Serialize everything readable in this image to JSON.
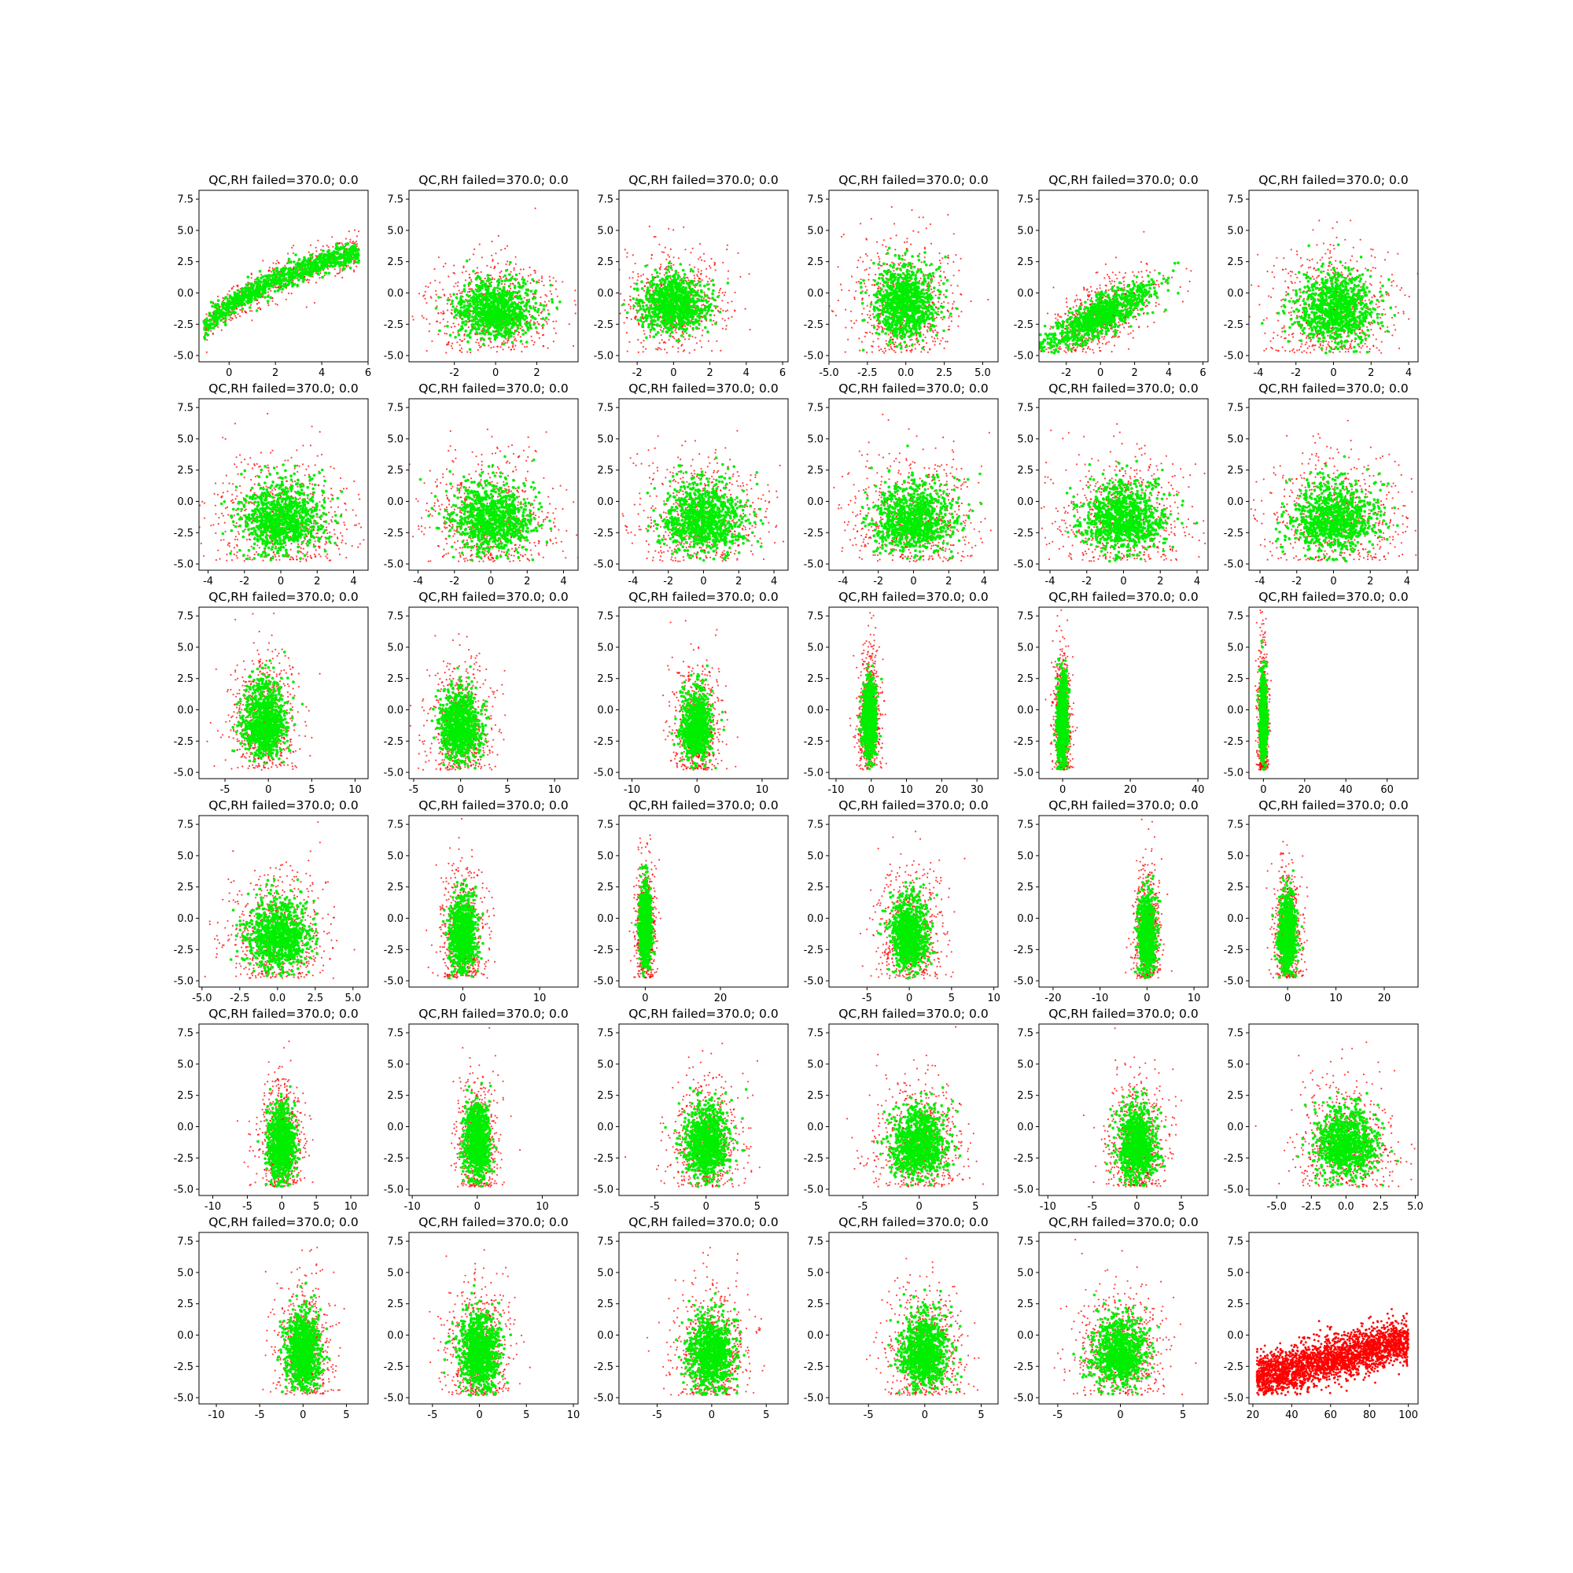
{
  "figure": {
    "rows": 6,
    "cols": 6,
    "colors": {
      "pass": "#00ee00",
      "fail": "#ff0000",
      "axes": "#000000",
      "background": "#ffffff"
    }
  },
  "chart_data": {
    "type": "scatter",
    "grid": false,
    "panels": [
      {
        "title": "QC,RH failed=370.0; 0.0",
        "xlim": [
          -1.3,
          6.0
        ],
        "ylim": [
          -5.5,
          8.2
        ],
        "xticks": [
          0,
          2,
          4,
          6
        ],
        "yticks": [
          -5.0,
          -2.5,
          0.0,
          2.5,
          5.0,
          7.5
        ],
        "shape": "curve",
        "cx": 0.5,
        "cy": -1.5,
        "sx": 1.0,
        "sy": 1.3
      },
      {
        "title": "QC,RH failed=370.0; 0.0",
        "xlim": [
          -4.2,
          4.0
        ],
        "ylim": [
          -5.5,
          8.2
        ],
        "xticks": [
          -2,
          0,
          2
        ],
        "yticks": [
          -5.0,
          -2.5,
          0.0,
          2.5,
          5.0,
          7.5
        ],
        "shape": "blob",
        "cx": 0.0,
        "cy": -1.5,
        "sx": 1.2,
        "sy": 1.2
      },
      {
        "title": "QC,RH failed=370.0; 0.0",
        "xlim": [
          -3.0,
          6.3
        ],
        "ylim": [
          -5.5,
          8.2
        ],
        "xticks": [
          -2,
          0,
          2,
          4,
          6
        ],
        "yticks": [
          -5.0,
          -2.5,
          0.0,
          2.5,
          5.0,
          7.5
        ],
        "shape": "blob",
        "cx": 0.0,
        "cy": -1.0,
        "sx": 1.1,
        "sy": 1.2
      },
      {
        "title": "QC,RH failed=370.0; 0.0",
        "xlim": [
          -5.0,
          6.0
        ],
        "ylim": [
          -5.5,
          8.2
        ],
        "xticks": [
          -5.0,
          -2.5,
          0.0,
          2.5,
          5.0
        ],
        "yticks": [
          -5.0,
          -2.5,
          0.0,
          2.5,
          5.0,
          7.5
        ],
        "shape": "blob",
        "cx": 0.0,
        "cy": -1.0,
        "sx": 1.2,
        "sy": 1.6
      },
      {
        "title": "QC,RH failed=370.0; 0.0",
        "xlim": [
          -3.6,
          6.3
        ],
        "ylim": [
          -5.5,
          8.2
        ],
        "xticks": [
          -2,
          0,
          2,
          4,
          6
        ],
        "yticks": [
          -5.0,
          -2.5,
          0.0,
          2.5,
          5.0,
          7.5
        ],
        "shape": "tilt",
        "cx": 0.0,
        "cy": -1.8,
        "sx": 1.5,
        "sy": 1.3
      },
      {
        "title": "QC,RH failed=370.0; 0.0",
        "xlim": [
          -4.5,
          4.5
        ],
        "ylim": [
          -5.5,
          8.2
        ],
        "xticks": [
          -4,
          -2,
          0,
          2,
          4
        ],
        "yticks": [
          -5.0,
          -2.5,
          0.0,
          2.5,
          5.0,
          7.5
        ],
        "shape": "blob",
        "cx": 0.0,
        "cy": -1.5,
        "sx": 1.3,
        "sy": 1.5
      },
      {
        "title": "QC,RH failed=370.0; 0.0",
        "xlim": [
          -4.5,
          4.8
        ],
        "ylim": [
          -5.5,
          8.2
        ],
        "xticks": [
          -4,
          -2,
          0,
          2,
          4
        ],
        "yticks": [
          -5.0,
          -2.5,
          0.0,
          2.5,
          5.0,
          7.5
        ],
        "shape": "blob",
        "cx": 0.0,
        "cy": -1.5,
        "sx": 1.4,
        "sy": 1.5
      },
      {
        "title": "QC,RH failed=370.0; 0.0",
        "xlim": [
          -4.5,
          4.8
        ],
        "ylim": [
          -5.5,
          8.2
        ],
        "xticks": [
          -4,
          -2,
          0,
          2,
          4
        ],
        "yticks": [
          -5.0,
          -2.5,
          0.0,
          2.5,
          5.0,
          7.5
        ],
        "shape": "blob",
        "cx": 0.0,
        "cy": -1.5,
        "sx": 1.4,
        "sy": 1.5
      },
      {
        "title": "QC,RH failed=370.0; 0.0",
        "xlim": [
          -4.8,
          4.8
        ],
        "ylim": [
          -5.5,
          8.2
        ],
        "xticks": [
          -4,
          -2,
          0,
          2,
          4
        ],
        "yticks": [
          -5.0,
          -2.5,
          0.0,
          2.5,
          5.0,
          7.5
        ],
        "shape": "blob",
        "cx": 0.0,
        "cy": -1.5,
        "sx": 1.4,
        "sy": 1.5
      },
      {
        "title": "QC,RH failed=370.0; 0.0",
        "xlim": [
          -4.8,
          4.8
        ],
        "ylim": [
          -5.5,
          8.2
        ],
        "xticks": [
          -4,
          -2,
          0,
          2,
          4
        ],
        "yticks": [
          -5.0,
          -2.5,
          0.0,
          2.5,
          5.0,
          7.5
        ],
        "shape": "blob",
        "cx": 0.0,
        "cy": -1.5,
        "sx": 1.4,
        "sy": 1.5
      },
      {
        "title": "QC,RH failed=370.0; 0.0",
        "xlim": [
          -4.6,
          4.6
        ],
        "ylim": [
          -5.5,
          8.2
        ],
        "xticks": [
          -4,
          -2,
          0,
          2,
          4
        ],
        "yticks": [
          -5.0,
          -2.5,
          0.0,
          2.5,
          5.0,
          7.5
        ],
        "shape": "blob",
        "cx": 0.0,
        "cy": -1.5,
        "sx": 1.4,
        "sy": 1.5
      },
      {
        "title": "QC,RH failed=370.0; 0.0",
        "xlim": [
          -4.6,
          4.6
        ],
        "ylim": [
          -5.5,
          8.2
        ],
        "xticks": [
          -4,
          -2,
          0,
          2,
          4
        ],
        "yticks": [
          -5.0,
          -2.5,
          0.0,
          2.5,
          5.0,
          7.5
        ],
        "shape": "blob",
        "cx": 0.0,
        "cy": -1.5,
        "sx": 1.4,
        "sy": 1.5
      },
      {
        "title": "QC,RH failed=370.0; 0.0",
        "xlim": [
          -8.0,
          11.5
        ],
        "ylim": [
          -5.5,
          8.2
        ],
        "xticks": [
          -5,
          0,
          5,
          10
        ],
        "yticks": [
          -5.0,
          -2.5,
          0.0,
          2.5,
          5.0,
          7.5
        ],
        "shape": "blob",
        "cx": -0.5,
        "cy": -1.0,
        "sx": 1.5,
        "sy": 1.6
      },
      {
        "title": "QC,RH failed=370.0; 0.0",
        "xlim": [
          -5.5,
          12.5
        ],
        "ylim": [
          -5.5,
          8.2
        ],
        "xticks": [
          -5,
          0,
          5,
          10
        ],
        "yticks": [
          -5.0,
          -2.5,
          0.0,
          2.5,
          5.0,
          7.5
        ],
        "shape": "blob",
        "cx": 0.0,
        "cy": -1.5,
        "sx": 1.3,
        "sy": 1.5
      },
      {
        "title": "QC,RH failed=370.0; 0.0",
        "xlim": [
          -12.0,
          14.0
        ],
        "ylim": [
          -5.5,
          8.2
        ],
        "xticks": [
          -10,
          0,
          10
        ],
        "yticks": [
          -5.0,
          -2.5,
          0.0,
          2.5,
          5.0,
          7.5
        ],
        "shape": "blob",
        "cx": 0.0,
        "cy": -1.5,
        "sx": 1.4,
        "sy": 1.5
      },
      {
        "title": "QC,RH failed=370.0; 0.0",
        "xlim": [
          -12.0,
          36.0
        ],
        "ylim": [
          -5.5,
          8.2
        ],
        "xticks": [
          -10,
          0,
          10,
          20,
          30
        ],
        "yticks": [
          -5.0,
          -2.5,
          0.0,
          2.5,
          5.0,
          7.5
        ],
        "shape": "blob",
        "cx": -0.5,
        "cy": -1.0,
        "sx": 1.2,
        "sy": 1.6
      },
      {
        "title": "QC,RH failed=370.0; 0.0",
        "xlim": [
          -7.0,
          43.0
        ],
        "ylim": [
          -5.5,
          8.2
        ],
        "xticks": [
          0,
          20,
          40
        ],
        "yticks": [
          -5.0,
          -2.5,
          0.0,
          2.5,
          5.0,
          7.5
        ],
        "shape": "blob",
        "cx": 0.0,
        "cy": -1.0,
        "sx": 1.0,
        "sy": 1.8
      },
      {
        "title": "QC,RH failed=370.0; 0.0",
        "xlim": [
          -7.0,
          75.0
        ],
        "ylim": [
          -5.5,
          8.2
        ],
        "xticks": [
          0,
          20,
          40,
          60
        ],
        "yticks": [
          -5.0,
          -2.5,
          0.0,
          2.5,
          5.0,
          7.5
        ],
        "shape": "blob",
        "cx": 0.0,
        "cy": -1.0,
        "sx": 1.0,
        "sy": 1.8
      },
      {
        "title": "QC,RH failed=370.0; 0.0",
        "xlim": [
          -5.2,
          6.0
        ],
        "ylim": [
          -5.5,
          8.2
        ],
        "xticks": [
          -5.0,
          -2.5,
          0.0,
          2.5,
          5.0
        ],
        "yticks": [
          -5.0,
          -2.5,
          0.0,
          2.5,
          5.0,
          7.5
        ],
        "shape": "blob",
        "cx": 0.0,
        "cy": -1.5,
        "sx": 1.3,
        "sy": 1.5
      },
      {
        "title": "QC,RH failed=370.0; 0.0",
        "xlim": [
          -7.0,
          15.0
        ],
        "ylim": [
          -5.5,
          8.2
        ],
        "xticks": [
          0,
          10
        ],
        "yticks": [
          -5.0,
          -2.5,
          0.0,
          2.5,
          5.0,
          7.5
        ],
        "shape": "blob",
        "cx": 0.0,
        "cy": -1.5,
        "sx": 1.1,
        "sy": 1.6
      },
      {
        "title": "QC,RH failed=370.0; 0.0",
        "xlim": [
          -7.0,
          38.0
        ],
        "ylim": [
          -5.5,
          8.2
        ],
        "xticks": [
          0,
          20
        ],
        "yticks": [
          -5.0,
          -2.5,
          0.0,
          2.5,
          5.0,
          7.5
        ],
        "shape": "blob",
        "cx": 0.0,
        "cy": -1.0,
        "sx": 1.0,
        "sy": 1.6
      },
      {
        "title": "QC,RH failed=370.0; 0.0",
        "xlim": [
          -9.5,
          10.5
        ],
        "ylim": [
          -5.5,
          8.2
        ],
        "xticks": [
          -5,
          0,
          5,
          10
        ],
        "yticks": [
          -5.0,
          -2.5,
          0.0,
          2.5,
          5.0,
          7.5
        ],
        "shape": "blob",
        "cx": 0.0,
        "cy": -1.5,
        "sx": 1.3,
        "sy": 1.5
      },
      {
        "title": "QC,RH failed=370.0; 0.0",
        "xlim": [
          -23.0,
          13.0
        ],
        "ylim": [
          -5.5,
          8.2
        ],
        "xticks": [
          -20,
          -10,
          0,
          10
        ],
        "yticks": [
          -5.0,
          -2.5,
          0.0,
          2.5,
          5.0,
          7.5
        ],
        "shape": "blob",
        "cx": 0.0,
        "cy": -1.5,
        "sx": 1.1,
        "sy": 1.6
      },
      {
        "title": "QC,RH failed=370.0; 0.0",
        "xlim": [
          -8.0,
          27.0
        ],
        "ylim": [
          -5.5,
          8.2
        ],
        "xticks": [
          0,
          10,
          20
        ],
        "yticks": [
          -5.0,
          -2.5,
          0.0,
          2.5,
          5.0,
          7.5
        ],
        "shape": "blob",
        "cx": 0.0,
        "cy": -1.5,
        "sx": 1.1,
        "sy": 1.6
      },
      {
        "title": "QC,RH failed=370.0; 0.0",
        "xlim": [
          -12.0,
          12.5
        ],
        "ylim": [
          -5.5,
          8.2
        ],
        "xticks": [
          -10,
          -5,
          0,
          5,
          10
        ],
        "yticks": [
          -5.0,
          -2.5,
          0.0,
          2.5,
          5.0,
          7.5
        ],
        "shape": "blob",
        "cx": 0.0,
        "cy": -1.5,
        "sx": 1.2,
        "sy": 1.6
      },
      {
        "title": "QC,RH failed=370.0; 0.0",
        "xlim": [
          -10.5,
          15.5
        ],
        "ylim": [
          -5.5,
          8.2
        ],
        "xticks": [
          -10,
          0,
          10
        ],
        "yticks": [
          -5.0,
          -2.5,
          0.0,
          2.5,
          5.0,
          7.5
        ],
        "shape": "blob",
        "cx": 0.0,
        "cy": -1.5,
        "sx": 1.2,
        "sy": 1.6
      },
      {
        "title": "QC,RH failed=370.0; 0.0",
        "xlim": [
          -8.5,
          8.0
        ],
        "ylim": [
          -5.5,
          8.2
        ],
        "xticks": [
          -5,
          0,
          5
        ],
        "yticks": [
          -5.0,
          -2.5,
          0.0,
          2.5,
          5.0,
          7.5
        ],
        "shape": "blob",
        "cx": 0.0,
        "cy": -1.5,
        "sx": 1.3,
        "sy": 1.6
      },
      {
        "title": "QC,RH failed=370.0; 0.0",
        "xlim": [
          -8.0,
          7.0
        ],
        "ylim": [
          -5.5,
          8.2
        ],
        "xticks": [
          -5,
          0,
          5
        ],
        "yticks": [
          -5.0,
          -2.5,
          0.0,
          2.5,
          5.0,
          7.5
        ],
        "shape": "blob",
        "cx": 0.0,
        "cy": -1.5,
        "sx": 1.5,
        "sy": 1.5
      },
      {
        "title": "QC,RH failed=370.0; 0.0",
        "xlim": [
          -11.0,
          8.0
        ],
        "ylim": [
          -5.5,
          8.2
        ],
        "xticks": [
          -10,
          -5,
          0,
          5
        ],
        "yticks": [
          -5.0,
          -2.5,
          0.0,
          2.5,
          5.0,
          7.5
        ],
        "shape": "blob",
        "cx": 0.0,
        "cy": -1.5,
        "sx": 1.3,
        "sy": 1.6
      },
      {
        "title": "",
        "xlim": [
          -7.0,
          5.2
        ],
        "ylim": [
          -5.5,
          8.2
        ],
        "xticks": [
          -5.0,
          -2.5,
          0.0,
          2.5,
          5.0
        ],
        "yticks": [
          -5.0,
          -2.5,
          0.0,
          2.5,
          5.0,
          7.5
        ],
        "shape": "blob",
        "cx": 0.0,
        "cy": -1.5,
        "sx": 1.3,
        "sy": 1.5
      },
      {
        "title": "QC,RH failed=370.0; 0.0",
        "xlim": [
          -12.0,
          7.5
        ],
        "ylim": [
          -5.5,
          8.2
        ],
        "xticks": [
          -10,
          -5,
          0,
          5
        ],
        "yticks": [
          -5.0,
          -2.5,
          0.0,
          2.5,
          5.0,
          7.5
        ],
        "shape": "blob",
        "cx": 0.0,
        "cy": -1.5,
        "sx": 1.2,
        "sy": 1.6
      },
      {
        "title": "QC,RH failed=370.0; 0.0",
        "xlim": [
          -7.5,
          10.5
        ],
        "ylim": [
          -5.5,
          8.2
        ],
        "xticks": [
          -5,
          0,
          5,
          10
        ],
        "yticks": [
          -5.0,
          -2.5,
          0.0,
          2.5,
          5.0,
          7.5
        ],
        "shape": "blob",
        "cx": 0.0,
        "cy": -1.5,
        "sx": 1.3,
        "sy": 1.6
      },
      {
        "title": "QC,RH failed=370.0; 0.0",
        "xlim": [
          -8.5,
          7.0
        ],
        "ylim": [
          -5.5,
          8.2
        ],
        "xticks": [
          -5,
          0,
          5
        ],
        "yticks": [
          -5.0,
          -2.5,
          0.0,
          2.5,
          5.0,
          7.5
        ],
        "shape": "blob",
        "cx": 0.0,
        "cy": -1.5,
        "sx": 1.3,
        "sy": 1.6
      },
      {
        "title": "QC,RH failed=370.0; 0.0",
        "xlim": [
          -8.5,
          6.5
        ],
        "ylim": [
          -5.5,
          8.2
        ],
        "xticks": [
          -5,
          0,
          5
        ],
        "yticks": [
          -5.0,
          -2.5,
          0.0,
          2.5,
          5.0,
          7.5
        ],
        "shape": "blob",
        "cx": 0.0,
        "cy": -1.5,
        "sx": 1.3,
        "sy": 1.6
      },
      {
        "title": "QC,RH failed=370.0; 0.0",
        "xlim": [
          -6.5,
          7.0
        ],
        "ylim": [
          -5.5,
          8.2
        ],
        "xticks": [
          -5,
          0,
          5
        ],
        "yticks": [
          -5.0,
          -2.5,
          0.0,
          2.5,
          5.0,
          7.5
        ],
        "shape": "blob",
        "cx": 0.0,
        "cy": -1.5,
        "sx": 1.3,
        "sy": 1.5
      },
      {
        "title": "",
        "xlim": [
          18.0,
          105.0
        ],
        "ylim": [
          -5.5,
          8.2
        ],
        "xticks": [
          20,
          40,
          60,
          80,
          100
        ],
        "yticks": [
          -5.0,
          -2.5,
          0.0,
          2.5,
          5.0,
          7.5
        ],
        "shape": "rh",
        "cx": 0.0,
        "cy": 0.0,
        "sx": 1.0,
        "sy": 1.0
      }
    ]
  }
}
